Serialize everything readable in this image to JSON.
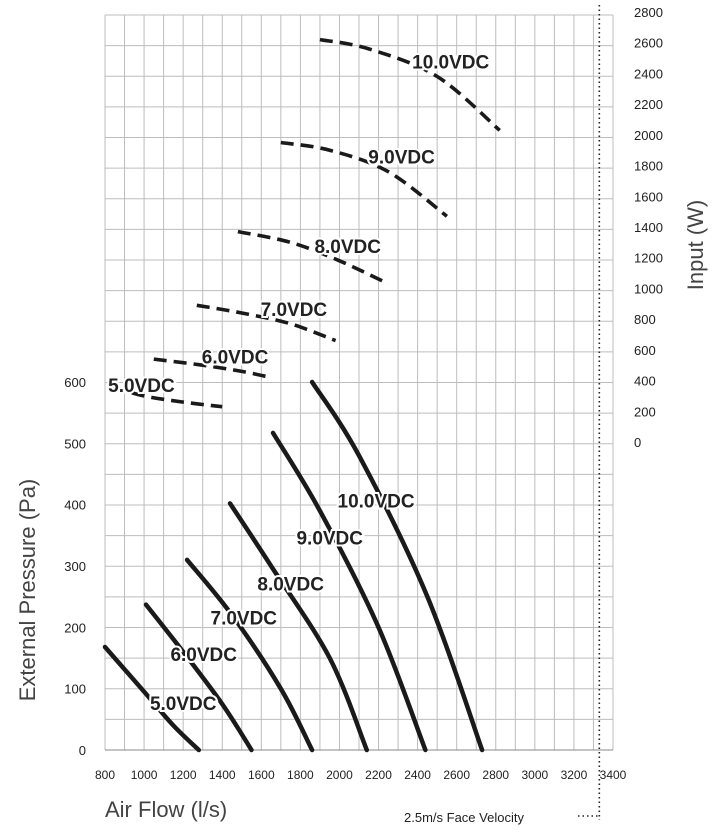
{
  "chart_data": {
    "type": "line",
    "xlabel": "Air Flow (l/s)",
    "ylabel_left": "External Pressure (Pa)",
    "ylabel_right": "Input (W)",
    "note": "2.5m/s Face Velocity",
    "x_range": [
      800,
      3400
    ],
    "x_ticks": [
      800,
      1000,
      1200,
      1400,
      1600,
      1800,
      2000,
      2200,
      2400,
      2600,
      2800,
      3000,
      3200,
      3400
    ],
    "y_left_range": [
      0,
      600
    ],
    "y_left_ticks": [
      0,
      100,
      200,
      300,
      400,
      500,
      600
    ],
    "y_right_range": [
      0,
      2800
    ],
    "y_right_ticks": [
      0,
      200,
      400,
      600,
      800,
      1000,
      1200,
      1400,
      1600,
      1800,
      2000,
      2200,
      2400,
      2600,
      2800
    ],
    "face_velocity_x": 3330,
    "grid": true,
    "pressure_series": [
      {
        "name": "5.0VDC",
        "label": "5.0VDC",
        "points": [
          [
            800,
            168
          ],
          [
            1000,
            95
          ],
          [
            1150,
            40
          ],
          [
            1280,
            0
          ]
        ]
      },
      {
        "name": "6.0VDC",
        "label": "6.0VDC",
        "points": [
          [
            1010,
            237
          ],
          [
            1200,
            160
          ],
          [
            1400,
            75
          ],
          [
            1550,
            0
          ]
        ]
      },
      {
        "name": "7.0VDC",
        "label": "7.0VDC",
        "points": [
          [
            1220,
            310
          ],
          [
            1450,
            220
          ],
          [
            1700,
            100
          ],
          [
            1860,
            0
          ]
        ]
      },
      {
        "name": "8.0VDC",
        "label": "8.0VDC",
        "points": [
          [
            1440,
            402
          ],
          [
            1650,
            300
          ],
          [
            1950,
            150
          ],
          [
            2140,
            0
          ]
        ]
      },
      {
        "name": "9.0VDC",
        "label": "9.0VDC",
        "points": [
          [
            1660,
            517
          ],
          [
            1900,
            390
          ],
          [
            2200,
            200
          ],
          [
            2440,
            0
          ]
        ]
      },
      {
        "name": "10.0VDC",
        "label": "10.0VDC",
        "points": [
          [
            1860,
            600
          ],
          [
            2100,
            480
          ],
          [
            2450,
            250
          ],
          [
            2730,
            0
          ]
        ]
      }
    ],
    "input_series": [
      {
        "name": "5.0VDC",
        "label": "5.0VDC",
        "points": [
          [
            840,
            360
          ],
          [
            1000,
            300
          ],
          [
            1200,
            260
          ],
          [
            1400,
            230
          ]
        ]
      },
      {
        "name": "6.0VDC",
        "label": "6.0VDC",
        "points": [
          [
            1050,
            540
          ],
          [
            1300,
            500
          ],
          [
            1500,
            460
          ],
          [
            1650,
            420
          ]
        ]
      },
      {
        "name": "7.0VDC",
        "label": "7.0VDC",
        "points": [
          [
            1270,
            890
          ],
          [
            1500,
            840
          ],
          [
            1750,
            770
          ],
          [
            1980,
            660
          ]
        ]
      },
      {
        "name": "8.0VDC",
        "label": "8.0VDC",
        "points": [
          [
            1480,
            1370
          ],
          [
            1750,
            1300
          ],
          [
            2000,
            1180
          ],
          [
            2250,
            1030
          ]
        ]
      },
      {
        "name": "9.0VDC",
        "label": "9.0VDC",
        "points": [
          [
            1700,
            1950
          ],
          [
            1950,
            1900
          ],
          [
            2250,
            1760
          ],
          [
            2550,
            1470
          ]
        ]
      },
      {
        "name": "10.0VDC",
        "label": "10.0VDC",
        "points": [
          [
            1900,
            2620
          ],
          [
            2150,
            2560
          ],
          [
            2500,
            2380
          ],
          [
            2820,
            2030
          ]
        ]
      }
    ]
  }
}
